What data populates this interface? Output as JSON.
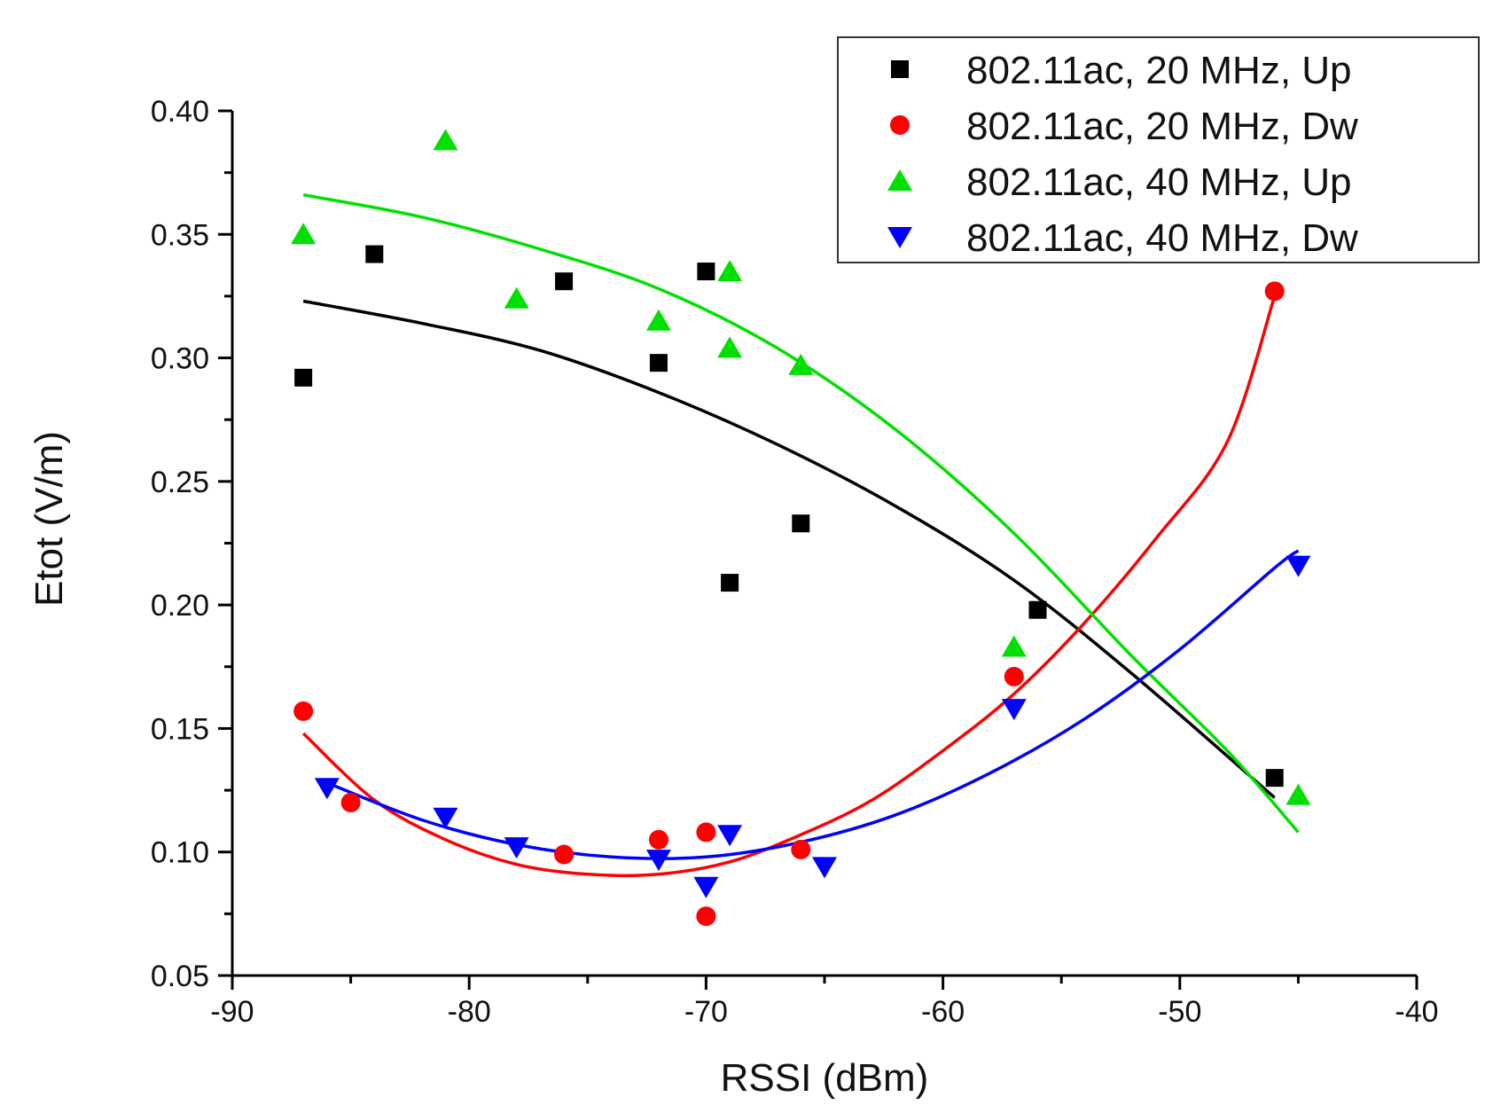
{
  "chart_data": {
    "type": "scatter",
    "title": "",
    "xlabel": "RSSI (dBm)",
    "ylabel": "Etot (V/m)",
    "xlim": [
      -90,
      -40
    ],
    "ylim": [
      0.05,
      0.4
    ],
    "x_ticks": [
      -90,
      -80,
      -70,
      -60,
      -50,
      -40
    ],
    "x_tick_labels": [
      "-90",
      "-80",
      "-70",
      "-60",
      "-50",
      "-40"
    ],
    "y_ticks": [
      0.05,
      0.1,
      0.15,
      0.2,
      0.25,
      0.3,
      0.35,
      0.4
    ],
    "y_tick_labels": [
      "0.05",
      "0.10",
      "0.15",
      "0.20",
      "0.25",
      "0.30",
      "0.35",
      "0.40"
    ],
    "grid": false,
    "legend_position": "top-right",
    "series": [
      {
        "name": "802.11ac, 20 MHz, Up",
        "marker": "square",
        "color": "#000000",
        "points": [
          [
            -87,
            0.292
          ],
          [
            -84,
            0.342
          ],
          [
            -76,
            0.331
          ],
          [
            -72,
            0.298
          ],
          [
            -70,
            0.335
          ],
          [
            -69,
            0.209
          ],
          [
            -66,
            0.233
          ],
          [
            -56,
            0.198
          ],
          [
            -46,
            0.13
          ]
        ],
        "fit_x": [
          -87,
          -46
        ],
        "fit": [
          [
            -87,
            0.323
          ],
          [
            -82,
            0.314
          ],
          [
            -77,
            0.303
          ],
          [
            -72,
            0.286
          ],
          [
            -67,
            0.265
          ],
          [
            -62,
            0.24
          ],
          [
            -57,
            0.21
          ],
          [
            -52,
            0.172
          ],
          [
            -46,
            0.122
          ]
        ]
      },
      {
        "name": "802.11ac, 20 MHz, Dw",
        "marker": "circle",
        "color": "#ff0000",
        "points": [
          [
            -87,
            0.157
          ],
          [
            -85,
            0.12
          ],
          [
            -76,
            0.099
          ],
          [
            -72,
            0.105
          ],
          [
            -70,
            0.108
          ],
          [
            -70,
            0.074
          ],
          [
            -66,
            0.101
          ],
          [
            -57,
            0.171
          ],
          [
            -46,
            0.327
          ]
        ],
        "fit_x": [
          -87,
          -46
        ],
        "fit": [
          [
            -87,
            0.148
          ],
          [
            -84,
            0.121
          ],
          [
            -81,
            0.105
          ],
          [
            -78,
            0.095
          ],
          [
            -75,
            0.091
          ],
          [
            -72,
            0.091
          ],
          [
            -69,
            0.096
          ],
          [
            -66,
            0.107
          ],
          [
            -63,
            0.121
          ],
          [
            -60,
            0.141
          ],
          [
            -57,
            0.164
          ],
          [
            -54,
            0.193
          ],
          [
            -51,
            0.227
          ],
          [
            -48,
            0.266
          ],
          [
            -46,
            0.325
          ]
        ]
      },
      {
        "name": "802.11ac, 40 MHz, Up",
        "marker": "triangle-up",
        "color": "#00e000",
        "points": [
          [
            -87,
            0.35
          ],
          [
            -81,
            0.388
          ],
          [
            -78,
            0.324
          ],
          [
            -72,
            0.315
          ],
          [
            -69,
            0.335
          ],
          [
            -69,
            0.304
          ],
          [
            -66,
            0.297
          ],
          [
            -57,
            0.183
          ],
          [
            -45,
            0.123
          ]
        ],
        "fit_x": [
          -87,
          -45
        ],
        "fit": [
          [
            -87,
            0.366
          ],
          [
            -82,
            0.357
          ],
          [
            -77,
            0.344
          ],
          [
            -72,
            0.328
          ],
          [
            -67,
            0.304
          ],
          [
            -62,
            0.271
          ],
          [
            -57,
            0.229
          ],
          [
            -52,
            0.179
          ],
          [
            -48,
            0.141
          ],
          [
            -45,
            0.108
          ]
        ]
      },
      {
        "name": "802.11ac, 40 MHz, Dw",
        "marker": "triangle-down",
        "color": "#0000ff",
        "points": [
          [
            -86,
            0.126
          ],
          [
            -81,
            0.114
          ],
          [
            -78,
            0.102
          ],
          [
            -72,
            0.097
          ],
          [
            -70,
            0.086
          ],
          [
            -69,
            0.107
          ],
          [
            -65,
            0.094
          ],
          [
            -57,
            0.158
          ],
          [
            -45,
            0.216
          ]
        ],
        "fit_x": [
          -86,
          -45
        ],
        "fit": [
          [
            -86,
            0.128
          ],
          [
            -82,
            0.113
          ],
          [
            -78,
            0.103
          ],
          [
            -74,
            0.098
          ],
          [
            -70,
            0.098
          ],
          [
            -66,
            0.104
          ],
          [
            -62,
            0.115
          ],
          [
            -58,
            0.132
          ],
          [
            -54,
            0.154
          ],
          [
            -50,
            0.182
          ],
          [
            -46,
            0.215
          ],
          [
            -45,
            0.222
          ]
        ]
      }
    ]
  }
}
